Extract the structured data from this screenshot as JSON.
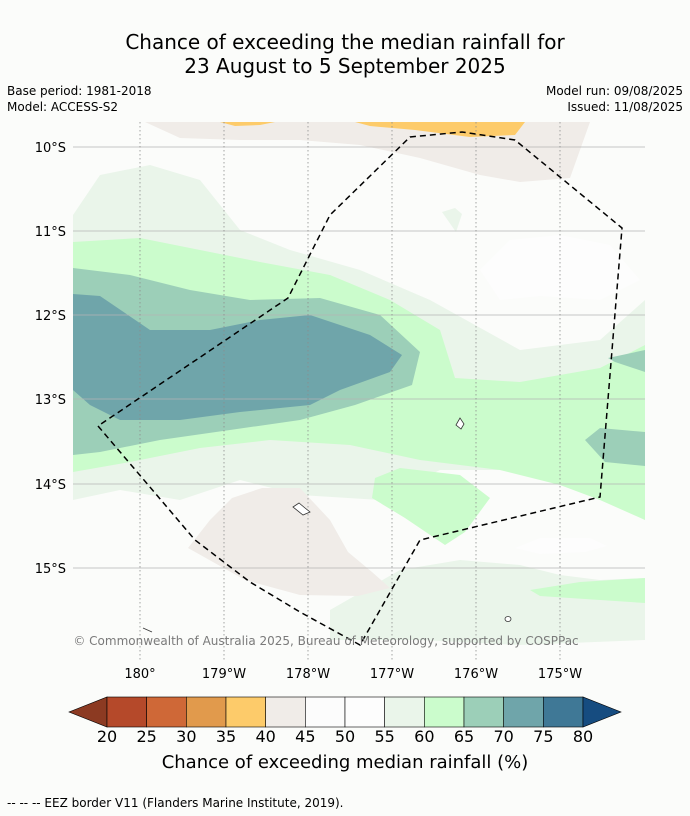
{
  "title": {
    "line1": "Chance of exceeding the median rainfall for",
    "line2": "23 August to 5 September 2025"
  },
  "meta": {
    "base_period": "Base period: 1981-2018",
    "model": "Model: ACCESS-S2",
    "model_run": "Model run: 09/08/2025",
    "issued": "Issued: 11/08/2025"
  },
  "map": {
    "lat_labels": [
      "10°S",
      "11°S",
      "12°S",
      "13°S",
      "14°S",
      "15°S"
    ],
    "lon_labels": [
      "180°",
      "179°W",
      "178°W",
      "177°W",
      "176°W",
      "175°W"
    ],
    "copyright": "© Commonwealth of Australia 2025, Bureau of Meteorology, supported by COSPPac",
    "ocean_color": "#fbfcfa"
  },
  "colorbar": {
    "ticks": [
      "20",
      "25",
      "30",
      "35",
      "40",
      "45",
      "50",
      "55",
      "60",
      "65",
      "70",
      "75",
      "80"
    ],
    "colors": {
      "below20": "#8c3a22",
      "20-25": "#b5492a",
      "25-30": "#cf6837",
      "30-35": "#e19a4c",
      "35-40": "#fdcb6a",
      "40-45": "#f0ece8",
      "45-50": "#fcfcfc",
      "50-55": "#fdfdfd",
      "55-60": "#eaf5ea",
      "60-65": "#cbfccc",
      "65-70": "#9ccfb8",
      "70-75": "#6fa5aa",
      "75-80": "#3f7896",
      "above80": "#164c80"
    },
    "title": "Chance of exceeding median rainfall (%)"
  },
  "footer": "--  --  -- EEZ border V11 (Flanders Marine Institute, 2019)."
}
